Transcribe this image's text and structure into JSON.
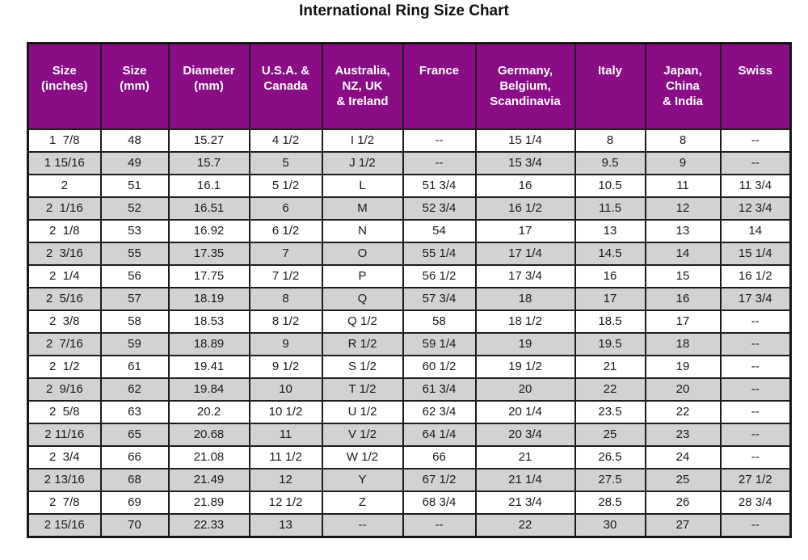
{
  "page": {
    "title": "International Ring Size Chart"
  },
  "colors": {
    "header_bg": "#8A0D86",
    "header_text": "#FFFFFF",
    "row_bg": "#FFFFFF",
    "row_alt_bg": "#D2D2D2",
    "border": "#1C1C1C",
    "text": "#1A1A1A"
  },
  "chart_data": {
    "type": "table",
    "title": "International Ring Size Chart",
    "columns": [
      "Size\n(inches)",
      "Size\n(mm)",
      "Diameter\n(mm)",
      "U.S.A. &\nCanada",
      "Australia,\nNZ, UK\n& Ireland",
      "France",
      "Germany,\nBelgium,\nScandinavia",
      "Italy",
      "Japan,\nChina\n& India",
      "Swiss"
    ],
    "rows": [
      [
        "1  7/8",
        "48",
        "15.27",
        "4 1/2",
        "I 1/2",
        "--",
        "15 1/4",
        "8",
        "8",
        "--"
      ],
      [
        "1 15/16",
        "49",
        "15.7",
        "5",
        "J 1/2",
        "--",
        "15 3/4",
        "9.5",
        "9",
        "--"
      ],
      [
        "2",
        "51",
        "16.1",
        "5 1/2",
        "L",
        "51 3/4",
        "16",
        "10.5",
        "11",
        "11 3/4"
      ],
      [
        "2  1/16",
        "52",
        "16.51",
        "6",
        "M",
        "52 3/4",
        "16 1/2",
        "11.5",
        "12",
        "12 3/4"
      ],
      [
        "2  1/8",
        "53",
        "16.92",
        "6 1/2",
        "N",
        "54",
        "17",
        "13",
        "13",
        "14"
      ],
      [
        "2  3/16",
        "55",
        "17.35",
        "7",
        "O",
        "55 1/4",
        "17 1/4",
        "14.5",
        "14",
        "15 1/4"
      ],
      [
        "2  1/4",
        "56",
        "17.75",
        "7 1/2",
        "P",
        "56 1/2",
        "17 3/4",
        "16",
        "15",
        "16 1/2"
      ],
      [
        "2  5/16",
        "57",
        "18.19",
        "8",
        "Q",
        "57 3/4",
        "18",
        "17",
        "16",
        "17 3/4"
      ],
      [
        "2  3/8",
        "58",
        "18.53",
        "8 1/2",
        "Q 1/2",
        "58",
        "18 1/2",
        "18.5",
        "17",
        "--"
      ],
      [
        "2  7/16",
        "59",
        "18.89",
        "9",
        "R 1/2",
        "59 1/4",
        "19",
        "19.5",
        "18",
        "--"
      ],
      [
        "2  1/2",
        "61",
        "19.41",
        "9 1/2",
        "S 1/2",
        "60 1/2",
        "19 1/2",
        "21",
        "19",
        "--"
      ],
      [
        "2  9/16",
        "62",
        "19.84",
        "10",
        "T 1/2",
        "61 3/4",
        "20",
        "22",
        "20",
        "--"
      ],
      [
        "2  5/8",
        "63",
        "20.2",
        "10 1/2",
        "U 1/2",
        "62 3/4",
        "20 1/4",
        "23.5",
        "22",
        "--"
      ],
      [
        "2 11/16",
        "65",
        "20.68",
        "11",
        "V 1/2",
        "64 1/4",
        "20 3/4",
        "25",
        "23",
        "--"
      ],
      [
        "2  3/4",
        "66",
        "21.08",
        "11 1/2",
        "W 1/2",
        "66",
        "21",
        "26.5",
        "24",
        "--"
      ],
      [
        "2 13/16",
        "68",
        "21.49",
        "12",
        "Y",
        "67 1/2",
        "21 1/4",
        "27.5",
        "25",
        "27 1/2"
      ],
      [
        "2  7/8",
        "69",
        "21.89",
        "12 1/2",
        "Z",
        "68 3/4",
        "21 3/4",
        "28.5",
        "26",
        "28 3/4"
      ],
      [
        "2 15/16",
        "70",
        "22.33",
        "13",
        "--",
        "--",
        "22",
        "30",
        "27",
        "--"
      ]
    ]
  }
}
